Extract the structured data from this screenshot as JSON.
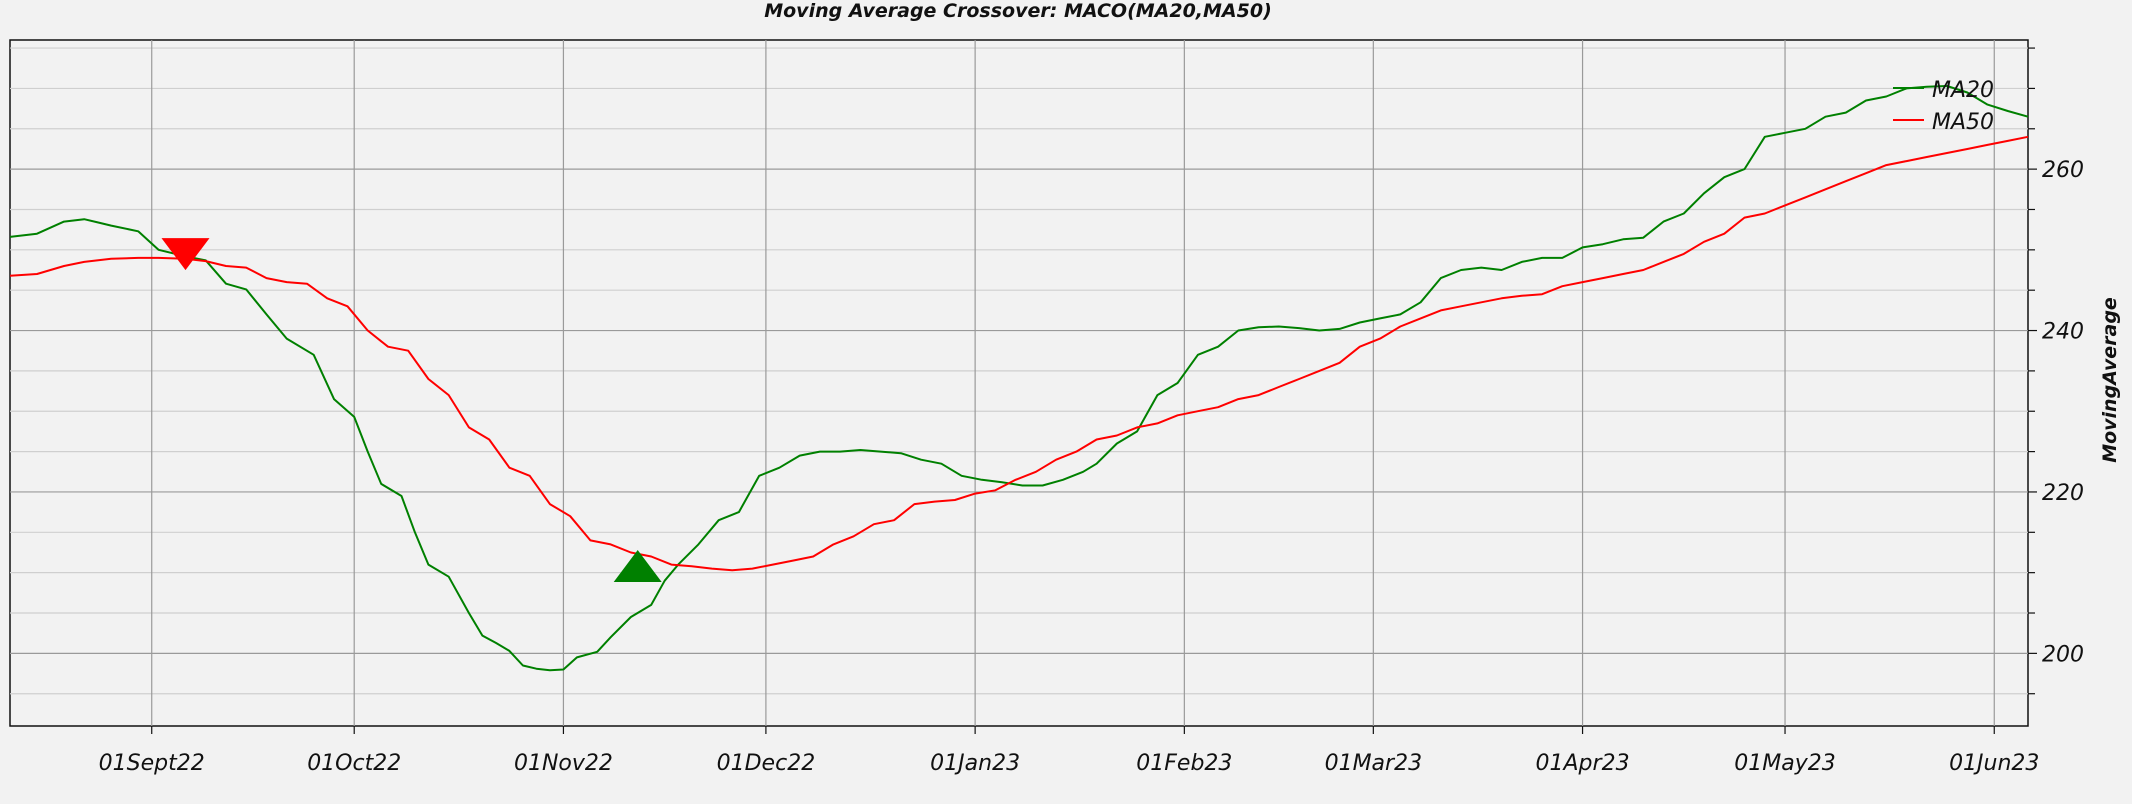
{
  "chart_data": {
    "type": "line",
    "title": "Moving Average Crossover: MACO(MA20,MA50)",
    "ylabel": "MovingAverage",
    "xlim": [
      "2022-08-11",
      "2023-06-06"
    ],
    "ylim": [
      191,
      276
    ],
    "y_major_ticks": [
      200,
      220,
      240,
      260
    ],
    "y_minor_ticks": [
      195,
      205,
      210,
      215,
      225,
      230,
      235,
      245,
      250,
      255,
      265,
      270,
      275
    ],
    "x_tick_labels": [
      {
        "date": "2022-09-01",
        "label": "01Sept22"
      },
      {
        "date": "2022-10-01",
        "label": "01Oct22"
      },
      {
        "date": "2022-11-01",
        "label": "01Nov22"
      },
      {
        "date": "2022-12-01",
        "label": "01Dec22"
      },
      {
        "date": "2023-01-01",
        "label": "01Jan23"
      },
      {
        "date": "2023-02-01",
        "label": "01Feb23"
      },
      {
        "date": "2023-03-01",
        "label": "01Mar23"
      },
      {
        "date": "2023-04-01",
        "label": "01Apr23"
      },
      {
        "date": "2023-05-01",
        "label": "01May23"
      },
      {
        "date": "2023-06-01",
        "label": "01Jun23"
      }
    ],
    "legend_position": "top-right",
    "grid": true,
    "series": [
      {
        "name": "MA20",
        "color": "#008000",
        "points": [
          [
            "2022-08-11",
            251.6
          ],
          [
            "2022-08-15",
            252.0
          ],
          [
            "2022-08-19",
            253.5
          ],
          [
            "2022-08-22",
            253.8
          ],
          [
            "2022-08-24",
            253.4
          ],
          [
            "2022-08-26",
            253.0
          ],
          [
            "2022-08-30",
            252.3
          ],
          [
            "2022-09-02",
            250.0
          ],
          [
            "2022-09-06",
            249.2
          ],
          [
            "2022-09-09",
            248.7
          ],
          [
            "2022-09-12",
            245.8
          ],
          [
            "2022-09-15",
            245.1
          ],
          [
            "2022-09-18",
            242.0
          ],
          [
            "2022-09-21",
            239.0
          ],
          [
            "2022-09-25",
            237.0
          ],
          [
            "2022-09-28",
            231.5
          ],
          [
            "2022-10-01",
            229.3
          ],
          [
            "2022-10-03",
            225.0
          ],
          [
            "2022-10-05",
            221.0
          ],
          [
            "2022-10-08",
            219.5
          ],
          [
            "2022-10-10",
            215.0
          ],
          [
            "2022-10-12",
            211.0
          ],
          [
            "2022-10-15",
            209.5
          ],
          [
            "2022-10-18",
            205.0
          ],
          [
            "2022-10-20",
            202.2
          ],
          [
            "2022-10-22",
            201.3
          ],
          [
            "2022-10-24",
            200.3
          ],
          [
            "2022-10-26",
            198.5
          ],
          [
            "2022-10-28",
            198.1
          ],
          [
            "2022-10-30",
            197.9
          ],
          [
            "2022-11-01",
            198.0
          ],
          [
            "2022-11-03",
            199.5
          ],
          [
            "2022-11-06",
            200.2
          ],
          [
            "2022-11-08",
            202.0
          ],
          [
            "2022-11-11",
            204.5
          ],
          [
            "2022-11-14",
            206.0
          ],
          [
            "2022-11-16",
            209.0
          ],
          [
            "2022-11-18",
            211.0
          ],
          [
            "2022-11-21",
            213.5
          ],
          [
            "2022-11-24",
            216.5
          ],
          [
            "2022-11-27",
            217.5
          ],
          [
            "2022-11-30",
            222.0
          ],
          [
            "2022-12-03",
            223.0
          ],
          [
            "2022-12-06",
            224.5
          ],
          [
            "2022-12-09",
            225.0
          ],
          [
            "2022-12-12",
            225.0
          ],
          [
            "2022-12-15",
            225.2
          ],
          [
            "2022-12-18",
            225.0
          ],
          [
            "2022-12-21",
            224.8
          ],
          [
            "2022-12-24",
            224.0
          ],
          [
            "2022-12-27",
            223.5
          ],
          [
            "2022-12-30",
            222.0
          ],
          [
            "2023-01-02",
            221.5
          ],
          [
            "2023-01-05",
            221.2
          ],
          [
            "2023-01-08",
            220.8
          ],
          [
            "2023-01-11",
            220.8
          ],
          [
            "2023-01-14",
            221.5
          ],
          [
            "2023-01-17",
            222.5
          ],
          [
            "2023-01-19",
            223.5
          ],
          [
            "2023-01-22",
            226.0
          ],
          [
            "2023-01-25",
            227.5
          ],
          [
            "2023-01-28",
            232.0
          ],
          [
            "2023-01-31",
            233.5
          ],
          [
            "2023-02-03",
            237.0
          ],
          [
            "2023-02-06",
            238.0
          ],
          [
            "2023-02-09",
            240.0
          ],
          [
            "2023-02-12",
            240.4
          ],
          [
            "2023-02-15",
            240.5
          ],
          [
            "2023-02-18",
            240.3
          ],
          [
            "2023-02-21",
            240.0
          ],
          [
            "2023-02-24",
            240.2
          ],
          [
            "2023-02-27",
            241.0
          ],
          [
            "2023-03-02",
            241.5
          ],
          [
            "2023-03-05",
            242.0
          ],
          [
            "2023-03-08",
            243.5
          ],
          [
            "2023-03-11",
            246.5
          ],
          [
            "2023-03-14",
            247.5
          ],
          [
            "2023-03-17",
            247.8
          ],
          [
            "2023-03-20",
            247.5
          ],
          [
            "2023-03-23",
            248.5
          ],
          [
            "2023-03-26",
            249.0
          ],
          [
            "2023-03-29",
            249.0
          ],
          [
            "2023-04-01",
            250.3
          ],
          [
            "2023-04-04",
            250.7
          ],
          [
            "2023-04-07",
            251.3
          ],
          [
            "2023-04-10",
            251.5
          ],
          [
            "2023-04-13",
            253.5
          ],
          [
            "2023-04-16",
            254.5
          ],
          [
            "2023-04-19",
            257.0
          ],
          [
            "2023-04-22",
            259.0
          ],
          [
            "2023-04-25",
            260.0
          ],
          [
            "2023-04-28",
            264.0
          ],
          [
            "2023-05-01",
            264.5
          ],
          [
            "2023-05-04",
            265.0
          ],
          [
            "2023-05-07",
            266.5
          ],
          [
            "2023-05-10",
            267.0
          ],
          [
            "2023-05-13",
            268.5
          ],
          [
            "2023-05-16",
            269.0
          ],
          [
            "2023-05-19",
            270.0
          ],
          [
            "2023-05-22",
            270.2
          ],
          [
            "2023-05-25",
            270.3
          ],
          [
            "2023-05-28",
            269.5
          ],
          [
            "2023-05-31",
            268.0
          ],
          [
            "2023-06-03",
            267.2
          ],
          [
            "2023-06-06",
            266.5
          ]
        ]
      },
      {
        "name": "MA50",
        "color": "#ff0000",
        "points": [
          [
            "2022-08-11",
            246.8
          ],
          [
            "2022-08-15",
            247.0
          ],
          [
            "2022-08-19",
            248.0
          ],
          [
            "2022-08-22",
            248.5
          ],
          [
            "2022-08-26",
            248.9
          ],
          [
            "2022-08-30",
            249.0
          ],
          [
            "2022-09-02",
            249.0
          ],
          [
            "2022-09-06",
            248.9
          ],
          [
            "2022-09-09",
            248.6
          ],
          [
            "2022-09-12",
            248.0
          ],
          [
            "2022-09-15",
            247.8
          ],
          [
            "2022-09-18",
            246.5
          ],
          [
            "2022-09-21",
            246.0
          ],
          [
            "2022-09-24",
            245.8
          ],
          [
            "2022-09-27",
            244.0
          ],
          [
            "2022-09-30",
            243.0
          ],
          [
            "2022-10-03",
            240.0
          ],
          [
            "2022-10-06",
            238.0
          ],
          [
            "2022-10-09",
            237.5
          ],
          [
            "2022-10-12",
            234.0
          ],
          [
            "2022-10-15",
            232.0
          ],
          [
            "2022-10-18",
            228.0
          ],
          [
            "2022-10-21",
            226.5
          ],
          [
            "2022-10-24",
            223.0
          ],
          [
            "2022-10-27",
            222.0
          ],
          [
            "2022-10-30",
            218.5
          ],
          [
            "2022-11-02",
            217.0
          ],
          [
            "2022-11-05",
            214.0
          ],
          [
            "2022-11-08",
            213.5
          ],
          [
            "2022-11-11",
            212.5
          ],
          [
            "2022-11-14",
            212.0
          ],
          [
            "2022-11-17",
            211.0
          ],
          [
            "2022-11-20",
            210.8
          ],
          [
            "2022-11-23",
            210.5
          ],
          [
            "2022-11-26",
            210.3
          ],
          [
            "2022-11-29",
            210.5
          ],
          [
            "2022-12-02",
            211.0
          ],
          [
            "2022-12-05",
            211.5
          ],
          [
            "2022-12-08",
            212.0
          ],
          [
            "2022-12-11",
            213.5
          ],
          [
            "2022-12-14",
            214.5
          ],
          [
            "2022-12-17",
            216.0
          ],
          [
            "2022-12-20",
            216.5
          ],
          [
            "2022-12-23",
            218.5
          ],
          [
            "2022-12-26",
            218.8
          ],
          [
            "2022-12-29",
            219.0
          ],
          [
            "2023-01-01",
            219.8
          ],
          [
            "2023-01-04",
            220.2
          ],
          [
            "2023-01-07",
            221.5
          ],
          [
            "2023-01-10",
            222.5
          ],
          [
            "2023-01-13",
            224.0
          ],
          [
            "2023-01-16",
            225.0
          ],
          [
            "2023-01-19",
            226.5
          ],
          [
            "2023-01-22",
            227.0
          ],
          [
            "2023-01-25",
            228.0
          ],
          [
            "2023-01-28",
            228.5
          ],
          [
            "2023-01-31",
            229.5
          ],
          [
            "2023-02-03",
            230.0
          ],
          [
            "2023-02-06",
            230.5
          ],
          [
            "2023-02-09",
            231.5
          ],
          [
            "2023-02-12",
            232.0
          ],
          [
            "2023-02-15",
            233.0
          ],
          [
            "2023-02-18",
            234.0
          ],
          [
            "2023-02-21",
            235.0
          ],
          [
            "2023-02-24",
            236.0
          ],
          [
            "2023-02-27",
            238.0
          ],
          [
            "2023-03-02",
            239.0
          ],
          [
            "2023-03-05",
            240.5
          ],
          [
            "2023-03-08",
            241.5
          ],
          [
            "2023-03-11",
            242.5
          ],
          [
            "2023-03-14",
            243.0
          ],
          [
            "2023-03-17",
            243.5
          ],
          [
            "2023-03-20",
            244.0
          ],
          [
            "2023-03-23",
            244.3
          ],
          [
            "2023-03-26",
            244.5
          ],
          [
            "2023-03-29",
            245.5
          ],
          [
            "2023-04-01",
            246.0
          ],
          [
            "2023-04-04",
            246.5
          ],
          [
            "2023-04-07",
            247.0
          ],
          [
            "2023-04-10",
            247.5
          ],
          [
            "2023-04-13",
            248.5
          ],
          [
            "2023-04-16",
            249.5
          ],
          [
            "2023-04-19",
            251.0
          ],
          [
            "2023-04-22",
            252.0
          ],
          [
            "2023-04-25",
            254.0
          ],
          [
            "2023-04-28",
            254.5
          ],
          [
            "2023-05-01",
            255.5
          ],
          [
            "2023-05-04",
            256.5
          ],
          [
            "2023-05-07",
            257.5
          ],
          [
            "2023-05-10",
            258.5
          ],
          [
            "2023-05-13",
            259.5
          ],
          [
            "2023-05-16",
            260.5
          ],
          [
            "2023-05-19",
            261.0
          ],
          [
            "2023-05-22",
            261.5
          ],
          [
            "2023-05-25",
            262.0
          ],
          [
            "2023-05-28",
            262.5
          ],
          [
            "2023-05-31",
            263.0
          ],
          [
            "2023-06-03",
            263.5
          ],
          [
            "2023-06-06",
            264.0
          ]
        ]
      }
    ],
    "markers": [
      {
        "type": "sell",
        "shape": "triangle-down",
        "date": "2022-09-06",
        "value": 249.0,
        "color": "#ff0000"
      },
      {
        "type": "buy",
        "shape": "triangle-up",
        "date": "2022-11-12",
        "value": 211.3,
        "color": "#008000"
      }
    ]
  }
}
